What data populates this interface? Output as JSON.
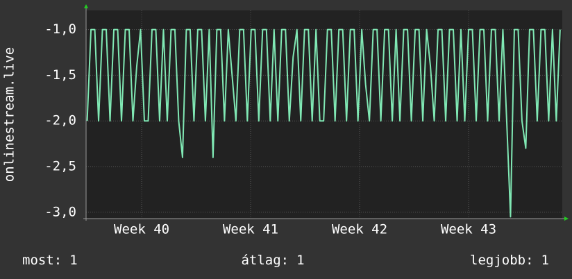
{
  "chart_data": {
    "type": "line",
    "y_label": "onlinestream.live",
    "xlim": [
      39.49,
      43.86
    ],
    "xticks": [
      {
        "value": 40,
        "label": "Week 40"
      },
      {
        "value": 41,
        "label": "Week 41"
      },
      {
        "value": 42,
        "label": "Week 42"
      },
      {
        "value": 43,
        "label": "Week 43"
      }
    ],
    "ylim": [
      -3.07,
      -0.79
    ],
    "yticks": [
      {
        "value": -3,
        "label": "-3,0"
      },
      {
        "value": -2.5,
        "label": "-2,5"
      },
      {
        "value": -2,
        "label": "-2,0"
      },
      {
        "value": -1.5,
        "label": "-1,5"
      },
      {
        "value": -1,
        "label": "-1,0"
      }
    ],
    "grid": true,
    "series": [
      {
        "color": "#80e8b4",
        "x": [
          39.5,
          39.535,
          39.57,
          39.605,
          39.64,
          39.675,
          39.71,
          39.745,
          39.78,
          39.815,
          39.85,
          39.885,
          39.92,
          39.955,
          39.99,
          40.025,
          40.06,
          40.095,
          40.13,
          40.165,
          40.2,
          40.235,
          40.27,
          40.305,
          40.34,
          40.375,
          40.41,
          40.445,
          40.48,
          40.515,
          40.55,
          40.585,
          40.62,
          40.655,
          40.69,
          40.725,
          40.76,
          40.795,
          40.83,
          40.865,
          40.9,
          40.935,
          40.97,
          41.005,
          41.04,
          41.075,
          41.11,
          41.145,
          41.18,
          41.215,
          41.25,
          41.285,
          41.32,
          41.355,
          41.39,
          41.425,
          41.46,
          41.495,
          41.53,
          41.565,
          41.6,
          41.635,
          41.67,
          41.705,
          41.74,
          41.775,
          41.81,
          41.845,
          41.88,
          41.915,
          41.95,
          41.985,
          42.02,
          42.055,
          42.09,
          42.125,
          42.16,
          42.195,
          42.23,
          42.265,
          42.3,
          42.335,
          42.37,
          42.405,
          42.44,
          42.475,
          42.51,
          42.545,
          42.58,
          42.615,
          42.65,
          42.685,
          42.72,
          42.755,
          42.79,
          42.825,
          42.86,
          42.895,
          42.93,
          42.965,
          43,
          43.035,
          43.07,
          43.105,
          43.14,
          43.175,
          43.21,
          43.245,
          43.28,
          43.315,
          43.35,
          43.385,
          43.42,
          43.455,
          43.49,
          43.525,
          43.56,
          43.595,
          43.63,
          43.665,
          43.7,
          43.735,
          43.77,
          43.805,
          43.84
        ],
        "values": [
          -2,
          -1,
          -1,
          -2,
          -1,
          -1,
          -2,
          -1,
          -1,
          -2,
          -1,
          -1,
          -2,
          -1.4,
          -1,
          -2,
          -2,
          -1,
          -1,
          -2,
          -1,
          -2,
          -1,
          -1,
          -2,
          -2.4,
          -1,
          -1,
          -2,
          -1,
          -1,
          -2,
          -1,
          -2.4,
          -1,
          -1,
          -2,
          -1,
          -1.5,
          -2,
          -1,
          -1,
          -2,
          -1,
          -1,
          -2,
          -1,
          -1,
          -2,
          -1,
          -2,
          -1,
          -1,
          -2,
          -1.3,
          -1,
          -2,
          -1,
          -1,
          -2,
          -1,
          -2,
          -2,
          -1,
          -1,
          -2,
          -1,
          -1,
          -2,
          -1,
          -1,
          -2,
          -1,
          -1.6,
          -2,
          -1,
          -1,
          -2,
          -1,
          -1,
          -2,
          -1,
          -2,
          -1,
          -1,
          -2,
          -1,
          -1,
          -2,
          -1,
          -1.4,
          -2,
          -1,
          -1,
          -2,
          -1,
          -1,
          -2,
          -1,
          -2,
          -1,
          -1,
          -2,
          -1,
          -1,
          -2,
          -1,
          -1,
          -2,
          -1,
          -2,
          -3.05,
          -1,
          -1,
          -2,
          -2.3,
          -1,
          -1,
          -2,
          -1,
          -1,
          -2,
          -1,
          -2,
          -1
        ]
      }
    ],
    "footer": [
      {
        "label": "most:",
        "value": 1
      },
      {
        "label": "átlag:",
        "value": 1
      },
      {
        "label": "legjobb:",
        "value": 1
      }
    ]
  }
}
